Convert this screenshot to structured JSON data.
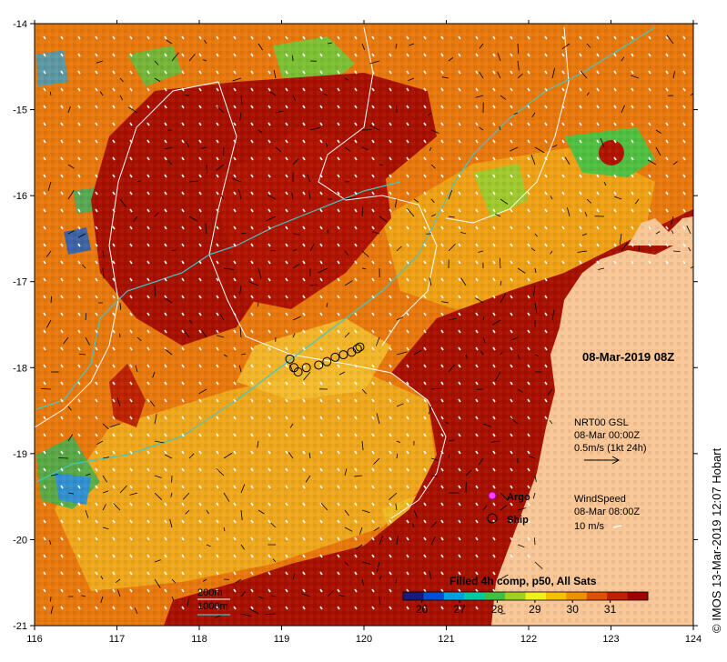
{
  "map": {
    "x_axis": {
      "min": 116,
      "max": 124,
      "ticks": [
        "116",
        "117",
        "118",
        "119",
        "120",
        "121",
        "122",
        "123",
        "124"
      ]
    },
    "y_axis": {
      "min": -21,
      "max": -14,
      "ticks": [
        "-14",
        "-15",
        "-16",
        "-17",
        "-18",
        "-19",
        "-20",
        "-21"
      ]
    },
    "timestamp": "08-Mar-2019 08Z",
    "current_info": {
      "line1": "NRT00 GSL",
      "line2": "08-Mar 00:00Z",
      "line3": "0.5m/s (1kt 24h)"
    },
    "wind_info": {
      "line1": "WindSpeed",
      "line2": "08-Mar 08:00Z",
      "line3": "10 m/s"
    },
    "legend": {
      "argo": "Argo",
      "ship": "Ship"
    },
    "depth_legend": {
      "white": "200m",
      "cyan": "1000m"
    },
    "colorbar": {
      "title": "Filled 4h comp, p50, All Sats",
      "ticks": [
        "26",
        "27",
        "28",
        "29",
        "30",
        "31"
      ],
      "min": 25.5,
      "max": 32.0,
      "colors": [
        "#1a1a7a",
        "#0050d0",
        "#00a0e0",
        "#00c8a0",
        "#40c040",
        "#a0d020",
        "#f0f020",
        "#f8c000",
        "#f09000",
        "#e05000",
        "#c02000",
        "#a00000"
      ]
    },
    "credit": "© IMOS 13-Mar-2019 12:07 Hobart",
    "ship_track": [
      [
        119.1,
        -17.9
      ],
      [
        119.15,
        -18.0
      ],
      [
        119.2,
        -18.05
      ],
      [
        119.3,
        -18.0
      ],
      [
        119.45,
        -17.97
      ],
      [
        119.55,
        -17.93
      ],
      [
        119.65,
        -17.88
      ],
      [
        119.75,
        -17.85
      ],
      [
        119.85,
        -17.82
      ],
      [
        119.92,
        -17.78
      ],
      [
        119.95,
        -17.76
      ]
    ],
    "colors": {
      "land": "#f9c696",
      "hot": "#a81000",
      "warm": "#e8760a",
      "mid": "#f0b020",
      "cool": "#60c040",
      "cold": "#30a0d0",
      "isobath200": "#ffffff",
      "isobath1000": "#40c8c8"
    }
  }
}
